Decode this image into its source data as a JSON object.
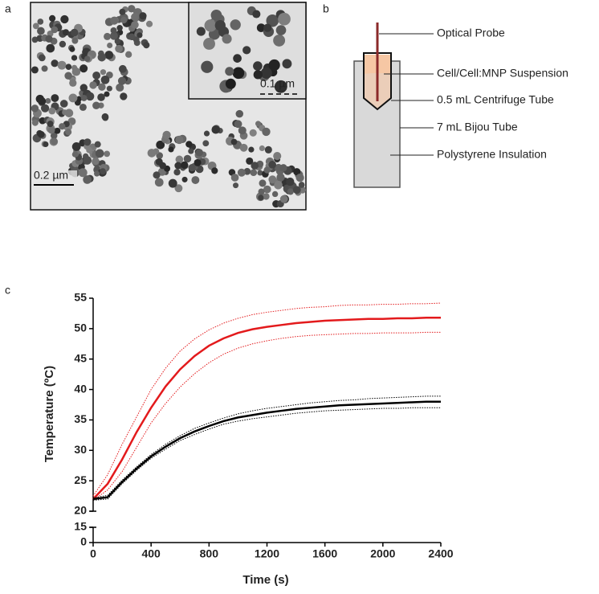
{
  "panels": {
    "a": "a",
    "b": "b",
    "c": "c"
  },
  "micrograph": {
    "scale_bar": "0.2 µm",
    "inset_scale_bar": "0.1 µm"
  },
  "diagram": {
    "labels": [
      "Optical Probe",
      "Cell/Cell:MNP Suspension",
      "0.5 mL Centrifuge Tube",
      "7 mL Bijou Tube",
      "Polystyrene Insulation"
    ]
  },
  "chart_data": {
    "type": "line",
    "x_label": "Time (s)",
    "y_label": "Temperature (ºC)",
    "x": [
      0,
      100,
      200,
      300,
      400,
      500,
      600,
      700,
      800,
      900,
      1000,
      1100,
      1200,
      1300,
      1400,
      1500,
      1600,
      1700,
      1800,
      1900,
      2000,
      2100,
      2200,
      2300,
      2400
    ],
    "xlim": [
      0,
      2400
    ],
    "xticks": [
      0,
      400,
      800,
      1200,
      1600,
      2000,
      2400
    ],
    "ylim": [
      0,
      55
    ],
    "yticks": [
      0,
      15,
      20,
      25,
      30,
      35,
      40,
      45,
      50,
      55
    ],
    "ybreak": [
      15,
      20
    ],
    "series": [
      {
        "color": "#e31a1c",
        "style": "dotted",
        "values": [
          22.5,
          26,
          31,
          35.5,
          40,
          43.5,
          46.3,
          48.3,
          49.8,
          50.9,
          51.7,
          52.3,
          52.7,
          53,
          53.3,
          53.5,
          53.6,
          53.8,
          53.9,
          53.9,
          54,
          54,
          54.1,
          54.1,
          54.2
        ]
      },
      {
        "color": "#e31a1c",
        "style": "solid",
        "values": [
          22,
          24.5,
          28.5,
          33,
          37,
          40.5,
          43.3,
          45.5,
          47.2,
          48.4,
          49.3,
          49.9,
          50.3,
          50.6,
          50.9,
          51.1,
          51.3,
          51.4,
          51.5,
          51.6,
          51.6,
          51.7,
          51.7,
          51.8,
          51.8
        ]
      },
      {
        "color": "#e31a1c",
        "style": "dotted",
        "values": [
          21.8,
          23.5,
          26.5,
          30.5,
          34.5,
          37.7,
          40.4,
          42.6,
          44.4,
          45.8,
          46.8,
          47.5,
          48,
          48.4,
          48.7,
          48.9,
          49,
          49.1,
          49.2,
          49.2,
          49.3,
          49.3,
          49.3,
          49.4,
          49.4
        ]
      },
      {
        "color": "#000000",
        "style": "dotted",
        "values": [
          22.2,
          22.6,
          25.1,
          27.3,
          29.3,
          31,
          32.4,
          33.6,
          34.5,
          35.3,
          36,
          36.5,
          36.9,
          37.2,
          37.5,
          37.8,
          38,
          38.2,
          38.3,
          38.5,
          38.6,
          38.7,
          38.8,
          38.9,
          38.9
        ]
      },
      {
        "color": "#000000",
        "style": "solid",
        "values": [
          22,
          22.3,
          24.8,
          27,
          29,
          30.6,
          32,
          33.1,
          34,
          34.8,
          35.4,
          35.8,
          36.2,
          36.5,
          36.8,
          37,
          37.2,
          37.4,
          37.5,
          37.6,
          37.7,
          37.8,
          37.9,
          38,
          38
        ]
      },
      {
        "color": "#000000",
        "style": "dotted",
        "values": [
          21.8,
          22,
          24.5,
          26.7,
          28.7,
          30.2,
          31.6,
          32.6,
          33.5,
          34.3,
          34.8,
          35.2,
          35.5,
          35.8,
          36.1,
          36.3,
          36.5,
          36.6,
          36.7,
          36.8,
          36.9,
          36.9,
          37,
          37,
          37
        ]
      }
    ]
  }
}
